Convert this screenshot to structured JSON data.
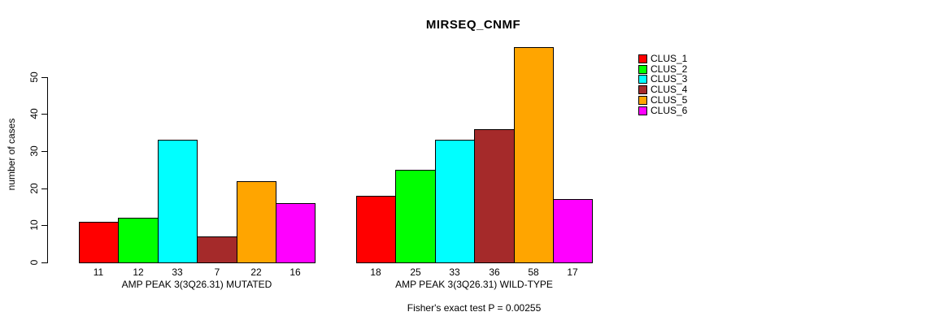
{
  "chart_data": {
    "type": "bar",
    "grouped": true,
    "title": "MIRSEQ_CNMF",
    "ylabel": "number of cases",
    "xlabel": "",
    "categories": [
      "AMP PEAK 3(3Q26.31) MUTATED",
      "AMP PEAK 3(3Q26.31) WILD-TYPE"
    ],
    "series": [
      {
        "name": "CLUS_1",
        "color": "#ff0000",
        "values": [
          11,
          18
        ]
      },
      {
        "name": "CLUS_2",
        "color": "#00ff00",
        "values": [
          12,
          25
        ]
      },
      {
        "name": "CLUS_3",
        "color": "#00ffff",
        "values": [
          33,
          33
        ]
      },
      {
        "name": "CLUS_4",
        "color": "#a52a2a",
        "values": [
          7,
          36
        ]
      },
      {
        "name": "CLUS_5",
        "color": "#ffa500",
        "values": [
          22,
          58
        ]
      },
      {
        "name": "CLUS_6",
        "color": "#ff00ff",
        "values": [
          16,
          17
        ]
      }
    ],
    "bar_value_labels": [
      [
        11,
        12,
        33,
        7,
        22,
        16
      ],
      [
        18,
        25,
        33,
        36,
        58,
        17
      ]
    ],
    "yticks": [
      0,
      10,
      20,
      30,
      40,
      50
    ],
    "ylim": [
      0,
      58
    ],
    "grid": false,
    "legend_position": "right",
    "bar_border_color": "#000000",
    "background_color": "#ffffff",
    "annotation": "Fisher's exact test P = 0.00255"
  },
  "legend": {
    "items": [
      {
        "label": "CLUS_1",
        "color": "#ff0000"
      },
      {
        "label": "CLUS_2",
        "color": "#00ff00"
      },
      {
        "label": "CLUS_3",
        "color": "#00ffff"
      },
      {
        "label": "CLUS_4",
        "color": "#a52a2a"
      },
      {
        "label": "CLUS_5",
        "color": "#ffa500"
      },
      {
        "label": "CLUS_6",
        "color": "#ff00ff"
      }
    ]
  }
}
